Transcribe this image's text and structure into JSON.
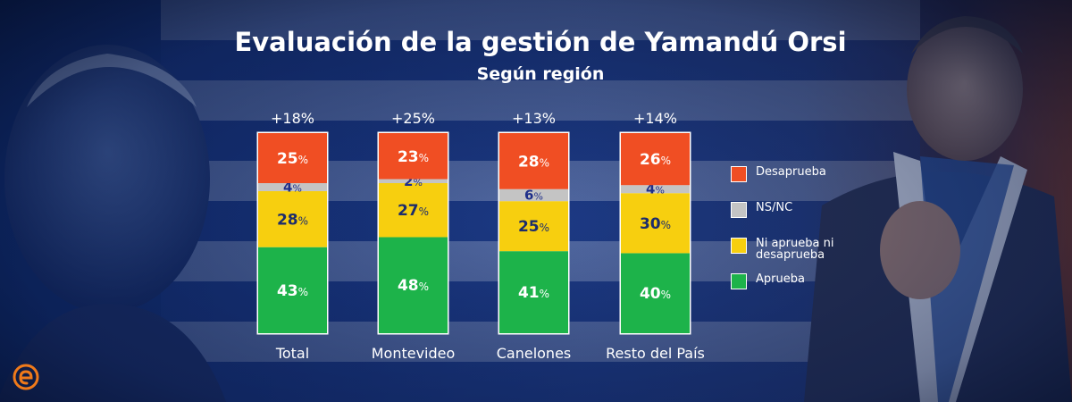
{
  "title": "Evaluación de la gestión de Yamandú Orsi",
  "subtitle": "Según región",
  "chart_data": {
    "type": "bar",
    "stacked": true,
    "title": "Evaluación de la gestión de Yamandú Orsi",
    "subtitle": "Según región",
    "categories": [
      "Total",
      "Montevideo",
      "Canelones",
      "Resto del País"
    ],
    "net_labels": [
      "+18%",
      "+25%",
      "+13%",
      "+14%"
    ],
    "ylim": [
      0,
      100
    ],
    "series": [
      {
        "name": "Aprueba",
        "color": "#1db34a",
        "text_color": "#ffffff",
        "values": [
          43,
          48,
          41,
          40
        ]
      },
      {
        "name": "Ni aprueba ni desaprueba",
        "color": "#f7cf0f",
        "text_color": "#1d2d6b",
        "values": [
          28,
          27,
          25,
          30
        ]
      },
      {
        "name": "NS/NC",
        "color": "#c4c4c4",
        "text_color": "#1f2f8a",
        "values": [
          4,
          2,
          6,
          4
        ]
      },
      {
        "name": "Desaprueba",
        "color": "#f04e23",
        "text_color": "#ffffff",
        "values": [
          25,
          23,
          28,
          26
        ]
      }
    ],
    "legend_placement": "right"
  },
  "legend": [
    {
      "label": "Desaprueba",
      "color": "#f04e23"
    },
    {
      "label": "NS/NC",
      "color": "#c4c4c4"
    },
    {
      "label": "Ni aprueba ni desaprueba",
      "color": "#f7cf0f"
    },
    {
      "label": "Aprueba",
      "color": "#1db34a"
    }
  ],
  "colors": {
    "accent": "#f07a1a"
  }
}
